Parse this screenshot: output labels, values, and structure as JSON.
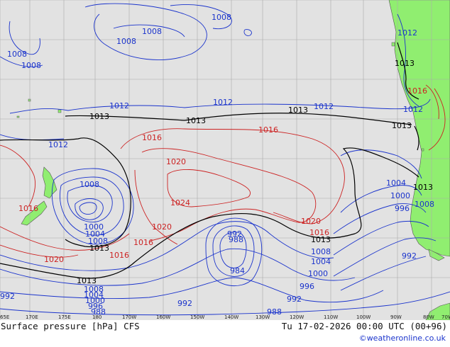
{
  "map": {
    "title": "Surface pressure [hPa] CFS",
    "valid_time": "Tu 17-02-2026 00:00 UTC (00+96)",
    "credit": "©weatheronline.co.uk",
    "colors": {
      "ocean": "#e2e2e2",
      "land": "#90ee70",
      "grid": "#aaaaaa",
      "low_isobar": "#1a33cc",
      "high_isobar": "#cc2222",
      "mean_isobar": "#000000"
    },
    "longitude_ticks": [
      "65E",
      "170E",
      "175E",
      "180",
      "170W",
      "160W",
      "150W",
      "140W",
      "130W",
      "120W",
      "110W",
      "100W",
      "90W",
      "80W",
      "70W"
    ],
    "isobar_labels": {
      "l1008a": "1008",
      "l1008b": "1008",
      "l1008c": "1008",
      "l1008d": "1008",
      "l1008e": "1008",
      "l1012a": "1012",
      "l1012b": "1012",
      "l1012c": "1012",
      "l1012d": "1012",
      "l1012e": "1012",
      "l1012f": "1012",
      "l1013a": "1013",
      "l1013b": "1013",
      "l1013c": "1013",
      "l1013d": "1013",
      "l1013e": "1013",
      "l1013f": "1013",
      "l1013g": "1013",
      "l1013h": "1013",
      "l1013i": "1013",
      "l1016a": "1016",
      "l1016b": "1016",
      "l1016c": "1016",
      "l1016d": "1016",
      "l1016e": "1016",
      "l1016f": "1016",
      "l1020a": "1020",
      "l1020b": "1020",
      "l1020c": "1020",
      "l1020d": "1020",
      "l1024": "1024",
      "l1008f": "1008",
      "l1004a": "1004",
      "l1000a": "1000",
      "l996a": "996",
      "l1008g": "1008",
      "l1004b": "1004",
      "l1000b": "1000",
      "l1008h": "1008",
      "l1004c": "1004",
      "l1000c": "1000",
      "l996b": "996",
      "l992a": "992",
      "l992b": "992",
      "l992c": "992",
      "l988a": "988",
      "l1008i": "1008",
      "l1004d": "1004",
      "l1000d": "1000",
      "l996c": "996",
      "l992d": "992",
      "l988b": "988",
      "l992e": "992",
      "l984": "984",
      "l988c": "988",
      "l1004e": "1004",
      "l1000e": "1000",
      "l996d": "996",
      "l1008j": "1008",
      "l992f": "992"
    }
  }
}
